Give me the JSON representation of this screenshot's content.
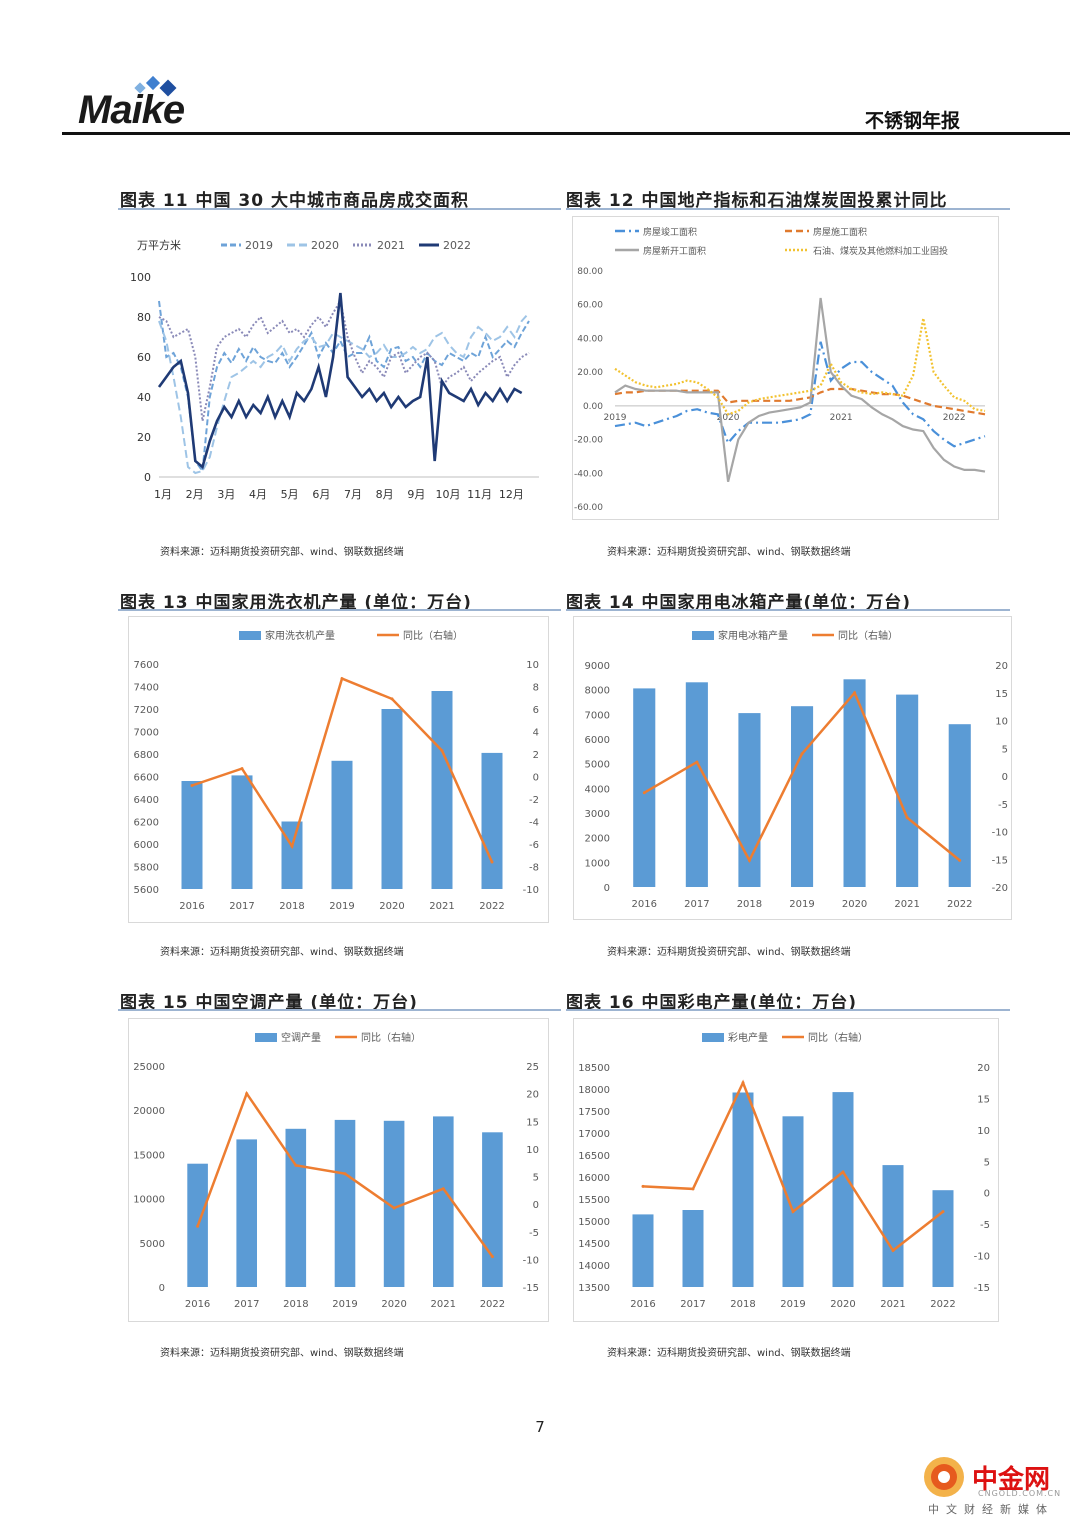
{
  "header": {
    "logo_text": "Maike",
    "report_title": "不锈钢年报"
  },
  "page_number": "7",
  "watermark": {
    "name": "中金网",
    "domain": "CNGOLD.COM.CN",
    "slogan": "中文财经新媒体"
  },
  "figures": [
    {
      "title": "图表 11   中国 30 大中城市商品房成交面积",
      "source": "资料来源：迈科期货投资研究部、wind、钢联数据终端",
      "chart_data": {
        "type": "line",
        "ylabel": "万平方米",
        "ylim": [
          0,
          100
        ],
        "yticks": [
          0,
          20,
          40,
          60,
          80,
          100
        ],
        "x_labels": [
          "1月",
          "2月",
          "3月",
          "4月",
          "5月",
          "6月",
          "7月",
          "8月",
          "9月",
          "10月",
          "11月",
          "12月"
        ],
        "series": [
          {
            "name": "2019",
            "color": "#6ea3d8",
            "values": [
              88,
              60,
              62,
              55,
              40,
              8,
              3,
              40,
              55,
              62,
              57,
              64,
              58,
              65,
              60,
              58,
              57,
              62,
              55,
              60,
              66,
              72,
              60,
              67,
              62,
              68,
              60,
              62,
              62,
              70,
              58,
              55,
              64,
              65,
              58,
              60,
              55,
              62,
              58,
              56,
              62,
              60,
              58,
              62,
              60,
              70,
              60,
              64,
              68,
              65,
              72,
              78
            ]
          },
          {
            "name": "2020",
            "color": "#9ec4e6",
            "values": [
              78,
              68,
              50,
              30,
              5,
              2,
              3,
              10,
              25,
              38,
              50,
              52,
              55,
              58,
              55,
              60,
              62,
              66,
              58,
              64,
              68,
              70,
              65,
              66,
              72,
              70,
              68,
              66,
              64,
              60,
              62,
              66,
              60,
              60,
              62,
              65,
              62,
              64,
              70,
              72,
              66,
              62,
              60,
              70,
              75,
              72,
              68,
              70,
              75,
              70,
              78,
              82
            ]
          },
          {
            "name": "2021",
            "color": "#8a8ab8",
            "values": [
              80,
              78,
              70,
              72,
              74,
              60,
              28,
              45,
              65,
              70,
              72,
              74,
              70,
              76,
              80,
              72,
              75,
              78,
              72,
              74,
              70,
              76,
              80,
              75,
              82,
              88,
              70,
              60,
              52,
              58,
              55,
              50,
              60,
              62,
              52,
              56,
              60,
              62,
              58,
              45,
              50,
              52,
              55,
              48,
              52,
              55,
              58,
              60,
              50,
              56,
              60,
              62
            ]
          },
          {
            "name": "2022",
            "color": "#1f3a75",
            "values": [
              45,
              50,
              55,
              58,
              42,
              8,
              5,
              18,
              28,
              35,
              30,
              38,
              30,
              36,
              32,
              40,
              30,
              38,
              30,
              42,
              38,
              44,
              55,
              40,
              60,
              92,
              50,
              45,
              40,
              44,
              38,
              42,
              35,
              40,
              35,
              38,
              40,
              60,
              8,
              48,
              42,
              40,
              38,
              44,
              36,
              42,
              38,
              44,
              38,
              44,
              42
            ]
          }
        ]
      }
    },
    {
      "title": "图表 12  中国地产指标和石油煤炭固投累计同比",
      "source": "资料来源：迈科期货投资研究部、wind、钢联数据终端",
      "chart_data": {
        "type": "line",
        "ylim": [
          -60,
          80
        ],
        "yticks": [
          -60,
          -40,
          -20,
          0,
          20,
          40,
          60,
          80
        ],
        "x_labels": [
          "2019",
          "2020",
          "2021",
          "2022"
        ],
        "series": [
          {
            "name": "房屋竣工面积",
            "color": "#4a90d9",
            "values": [
              -12,
              -11,
              -10,
              -12,
              -10,
              -8,
              -6,
              -3,
              -2,
              -4,
              -5,
              -22,
              -15,
              -10,
              -10,
              -10,
              -10,
              -9,
              -8,
              -5,
              38,
              15,
              22,
              26,
              26,
              20,
              16,
              12,
              2,
              -5,
              -8,
              -15,
              -20,
              -24,
              -22,
              -20,
              -18
            ]
          },
          {
            "name": "房屋施工面积",
            "color": "#e07a2e",
            "values": [
              7,
              8,
              8,
              9,
              9,
              9,
              9,
              9,
              9,
              9,
              9,
              2,
              3,
              3,
              3,
              3,
              3,
              3,
              4,
              5,
              8,
              10,
              10,
              10,
              9,
              8,
              7,
              7,
              6,
              4,
              2,
              0,
              -1,
              -2,
              -3,
              -4,
              -5
            ]
          },
          {
            "name": "房屋新开工面积",
            "color": "#a6a6a6",
            "values": [
              8,
              12,
              10,
              9,
              9,
              9,
              9,
              8,
              8,
              8,
              8,
              -45,
              -20,
              -10,
              -6,
              -4,
              -3,
              -2,
              -1,
              2,
              64,
              20,
              12,
              6,
              4,
              -1,
              -5,
              -8,
              -12,
              -14,
              -15,
              -25,
              -32,
              -36,
              -38,
              -38,
              -39
            ]
          },
          {
            "name": "石油、煤炭及其他燃料加工业固投",
            "color": "#f2c230",
            "values": [
              22,
              18,
              14,
              12,
              11,
              12,
              13,
              15,
              14,
              10,
              5,
              -5,
              -3,
              2,
              4,
              5,
              6,
              7,
              8,
              9,
              12,
              25,
              14,
              10,
              8,
              7,
              8,
              7,
              6,
              18,
              52,
              20,
              12,
              5,
              3,
              -2,
              -3
            ]
          }
        ]
      }
    },
    {
      "title": "图表 13  中国家用洗衣机产量 (单位：万台)",
      "source": "资料来源：迈科期货投资研究部、wind、钢联数据终端",
      "chart_data": {
        "type": "bar",
        "categories": [
          "2016",
          "2017",
          "2018",
          "2019",
          "2020",
          "2021",
          "2022"
        ],
        "bar_series": {
          "name": "家用洗衣机产量",
          "values": [
            6560,
            6610,
            6200,
            6740,
            7200,
            7360,
            6810
          ]
        },
        "line_series": {
          "name": "同比（右轴）",
          "values": [
            -0.8,
            0.7,
            -6.2,
            8.7,
            6.9,
            2.3,
            -7.6
          ]
        },
        "ylim": [
          5600,
          7600
        ],
        "yticks": [
          5600,
          5800,
          6000,
          6200,
          6400,
          6600,
          6800,
          7000,
          7200,
          7400,
          7600
        ],
        "y2lim": [
          -10,
          10
        ],
        "y2ticks": [
          -10,
          -8,
          -6,
          -4,
          -2,
          0,
          2,
          4,
          6,
          8,
          10
        ]
      }
    },
    {
      "title": "图表 14  中国家用电冰箱产量(单位：万台)",
      "source": "资料来源：迈科期货投资研究部、wind、钢联数据终端",
      "chart_data": {
        "type": "bar",
        "categories": [
          "2016",
          "2017",
          "2018",
          "2019",
          "2020",
          "2021",
          "2022"
        ],
        "bar_series": {
          "name": "家用电冰箱产量",
          "values": [
            8050,
            8300,
            7050,
            7330,
            8420,
            7800,
            6600
          ]
        },
        "line_series": {
          "name": "同比（右轴）",
          "values": [
            -3,
            2.5,
            -15.2,
            4,
            15,
            -7.5,
            -15.2
          ]
        },
        "ylim": [
          0,
          9000
        ],
        "yticks": [
          0,
          1000,
          2000,
          3000,
          4000,
          5000,
          6000,
          7000,
          8000,
          9000
        ],
        "y2lim": [
          -20,
          20
        ],
        "y2ticks": [
          -20,
          -15,
          -10,
          -5,
          0,
          5,
          10,
          15,
          20
        ]
      }
    },
    {
      "title": "图表 15  中国空调产量 (单位：万台)",
      "source": "资料来源：迈科期货投资研究部、wind、钢联数据终端",
      "chart_data": {
        "type": "bar",
        "categories": [
          "2016",
          "2017",
          "2018",
          "2019",
          "2020",
          "2021",
          "2022"
        ],
        "bar_series": {
          "name": "空调产量",
          "values": [
            13950,
            16700,
            17900,
            18900,
            18800,
            19300,
            17500
          ]
        },
        "line_series": {
          "name": "同比（右轴）",
          "values": [
            -4,
            20,
            7,
            5.5,
            -0.7,
            2.8,
            -9.5
          ]
        },
        "ylim": [
          0,
          25000
        ],
        "yticks": [
          0,
          5000,
          10000,
          15000,
          20000,
          25000
        ],
        "y2lim": [
          -15,
          25
        ],
        "y2ticks": [
          -15,
          -10,
          -5,
          0,
          5,
          10,
          15,
          20,
          25
        ]
      }
    },
    {
      "title": "图表 16  中国彩电产量(单位：万台)",
      "source": "资料来源：迈科期货投资研究部、wind、钢联数据终端",
      "chart_data": {
        "type": "bar",
        "categories": [
          "2016",
          "2017",
          "2018",
          "2019",
          "2020",
          "2021",
          "2022"
        ],
        "bar_series": {
          "name": "彩电产量",
          "values": [
            15150,
            15250,
            17920,
            17380,
            17930,
            16270,
            15700
          ]
        },
        "line_series": {
          "name": "同比（右轴）",
          "values": [
            1,
            0.6,
            17.5,
            -3,
            3.3,
            -9.2,
            -3
          ]
        },
        "ylim": [
          13500,
          18500
        ],
        "yticks": [
          13500,
          14000,
          14500,
          15000,
          15500,
          16000,
          16500,
          17000,
          17500,
          18000,
          18500
        ],
        "y2lim": [
          -15,
          20
        ],
        "y2ticks": [
          -15,
          -10,
          -5,
          0,
          5,
          10,
          15,
          20
        ]
      }
    }
  ]
}
